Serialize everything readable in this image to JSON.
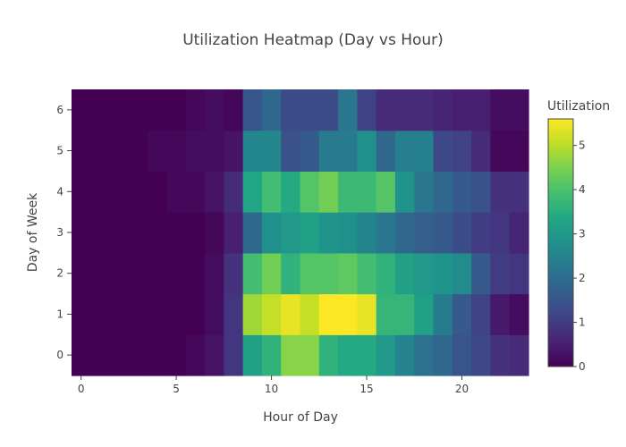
{
  "chart_data": {
    "type": "heatmap",
    "title": "Utilization Heatmap (Day vs Hour)",
    "xlabel": "Hour of Day",
    "ylabel": "Day of Week",
    "x": [
      0,
      1,
      2,
      3,
      4,
      5,
      6,
      7,
      8,
      9,
      10,
      11,
      12,
      13,
      14,
      15,
      16,
      17,
      18,
      19,
      20,
      21,
      22,
      23
    ],
    "y": [
      0,
      1,
      2,
      3,
      4,
      5,
      6
    ],
    "xticks": [
      0,
      5,
      10,
      15,
      20
    ],
    "yticks": [
      0,
      1,
      2,
      3,
      4,
      5,
      6
    ],
    "colorbar": {
      "title": "Utilization",
      "range": [
        0,
        5.6
      ],
      "ticks": [
        0,
        1,
        2,
        3,
        4,
        5
      ]
    },
    "colorscale": "Viridis",
    "z": [
      [
        0.0,
        0.0,
        0.0,
        0.0,
        0.0,
        0.0,
        0.1,
        0.3,
        0.9,
        3.2,
        3.6,
        4.6,
        4.6,
        3.6,
        3.4,
        3.4,
        3.0,
        2.5,
        2.1,
        1.9,
        1.5,
        1.2,
        0.8,
        0.7
      ],
      [
        0.0,
        0.0,
        0.0,
        0.0,
        0.0,
        0.0,
        0.0,
        0.2,
        0.9,
        4.8,
        5.1,
        5.4,
        5.1,
        5.7,
        5.6,
        5.4,
        3.7,
        3.7,
        3.2,
        2.3,
        1.6,
        1.1,
        0.4,
        0.2
      ],
      [
        0.0,
        0.0,
        0.0,
        0.0,
        0.0,
        0.0,
        0.0,
        0.2,
        0.8,
        3.9,
        4.4,
        3.6,
        4.1,
        4.1,
        4.2,
        3.9,
        3.6,
        3.2,
        3.0,
        2.9,
        2.7,
        1.6,
        1.0,
        0.9
      ],
      [
        0.0,
        0.0,
        0.0,
        0.0,
        0.0,
        0.0,
        0.0,
        0.1,
        0.5,
        1.9,
        2.8,
        3.0,
        3.2,
        2.9,
        2.8,
        2.5,
        2.2,
        1.9,
        1.7,
        1.6,
        1.3,
        1.0,
        0.9,
        0.6
      ],
      [
        0.0,
        0.0,
        0.0,
        0.0,
        0.0,
        0.1,
        0.1,
        0.3,
        0.7,
        3.3,
        3.9,
        3.4,
        4.1,
        4.4,
        3.8,
        3.8,
        4.1,
        2.9,
        2.2,
        1.9,
        1.6,
        1.4,
        0.8,
        0.8
      ],
      [
        0.0,
        0.0,
        0.0,
        0.0,
        0.1,
        0.1,
        0.2,
        0.2,
        0.3,
        2.6,
        2.6,
        1.4,
        1.6,
        2.3,
        2.3,
        2.8,
        1.9,
        2.4,
        2.4,
        1.2,
        1.1,
        0.7,
        0.1,
        0.1
      ],
      [
        0.0,
        0.0,
        0.0,
        0.0,
        0.0,
        0.0,
        0.1,
        0.2,
        0.1,
        1.5,
        1.9,
        1.3,
        1.3,
        1.3,
        2.2,
        1.1,
        0.7,
        0.7,
        0.7,
        0.6,
        0.5,
        0.5,
        0.2,
        0.2
      ]
    ]
  }
}
